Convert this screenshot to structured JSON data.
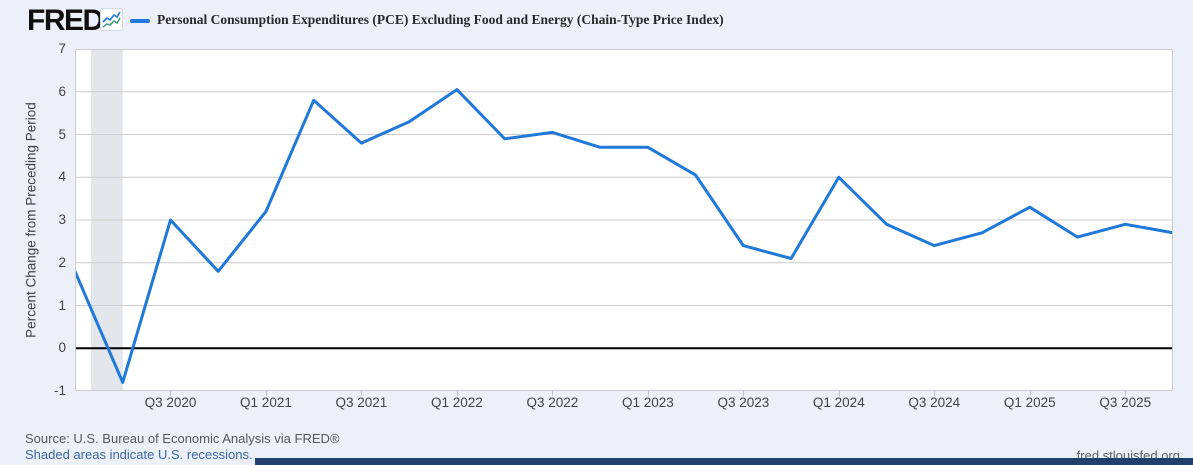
{
  "header": {
    "logo_text": "FRED",
    "logo_reg": "®",
    "series_label": "Personal Consumption Expenditures (PCE) Excluding Food and Energy (Chain-Type Price Index)"
  },
  "colors": {
    "accent_line": "#2079d9",
    "recession_band": "#e3e7ec",
    "gridline": "#cccccc",
    "zero_line": "#000000",
    "page_background": "#ecf1f9",
    "plot_background": "#ffffff",
    "icon_line_blue": "#2079d9",
    "icon_line_green": "#3fa17c"
  },
  "chart_data": {
    "type": "line",
    "title": "Personal Consumption Expenditures (PCE) Excluding Food and Energy (Chain-Type Price Index)",
    "xlabel": "",
    "ylabel": "Percent Change from Preceding Period",
    "ylim": [
      -1,
      7
    ],
    "yticks": [
      7,
      6,
      5,
      4,
      3,
      2,
      1,
      0,
      -1
    ],
    "grid": "horizontal",
    "legend_position": "top-left",
    "zero_line": true,
    "x": [
      "Q1 2020",
      "Q2 2020",
      "Q3 2020",
      "Q4 2020",
      "Q1 2021",
      "Q2 2021",
      "Q3 2021",
      "Q4 2021",
      "Q1 2022",
      "Q2 2022",
      "Q3 2022",
      "Q4 2022",
      "Q1 2023",
      "Q2 2023",
      "Q3 2023",
      "Q4 2023",
      "Q1 2024",
      "Q2 2024",
      "Q3 2024",
      "Q4 2024",
      "Q1 2025",
      "Q2 2025",
      "Q3 2025",
      "Q4 2025"
    ],
    "values": [
      1.8,
      -0.8,
      3.0,
      1.8,
      3.2,
      5.8,
      4.8,
      5.3,
      6.05,
      4.9,
      5.05,
      4.7,
      4.7,
      4.05,
      2.4,
      2.1,
      4.0,
      2.9,
      2.4,
      2.7,
      3.3,
      2.6,
      2.9,
      2.7
    ],
    "xtick_labels": [
      "Q3 2020",
      "Q1 2021",
      "Q3 2021",
      "Q1 2022",
      "Q3 2022",
      "Q1 2023",
      "Q3 2023",
      "Q1 2024",
      "Q3 2024",
      "Q1 2025",
      "Q3 2025"
    ],
    "recession_shading": {
      "from": "2020-02",
      "to": "2020-04"
    }
  },
  "footer": {
    "source": "Source: U.S. Bureau of Economic Analysis via FRED®",
    "note": "Shaded areas indicate U.S. recessions.",
    "site": "fred.stlouisfed.org"
  }
}
